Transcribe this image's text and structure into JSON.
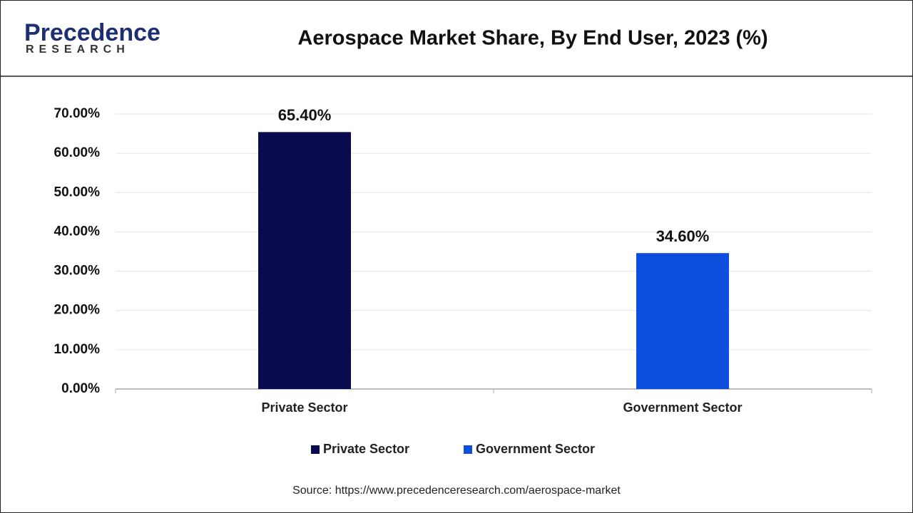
{
  "logo": {
    "name": "Precedence",
    "tagline": "RESEARCH"
  },
  "chart_data": {
    "type": "bar",
    "title": "Aerospace Market Share, By End User, 2023 (%)",
    "categories": [
      "Private Sector",
      "Government Sector"
    ],
    "values": [
      65.4,
      34.6
    ],
    "value_labels": [
      "65.40%",
      "34.60%"
    ],
    "colors": [
      "#0a0a4f",
      "#0b4fdc"
    ],
    "ylim": [
      0,
      70
    ],
    "yticks": [
      {
        "value": 0,
        "label": "0.00%"
      },
      {
        "value": 10,
        "label": "10.00%"
      },
      {
        "value": 20,
        "label": "20.00%"
      },
      {
        "value": 30,
        "label": "30.00%"
      },
      {
        "value": 40,
        "label": "40.00%"
      },
      {
        "value": 50,
        "label": "50.00%"
      },
      {
        "value": 60,
        "label": "60.00%"
      },
      {
        "value": 70,
        "label": "70.00%"
      }
    ],
    "grid": true,
    "legend": "bottom",
    "source": "Source: https://www.precedenceresearch.com/aerospace-market"
  }
}
